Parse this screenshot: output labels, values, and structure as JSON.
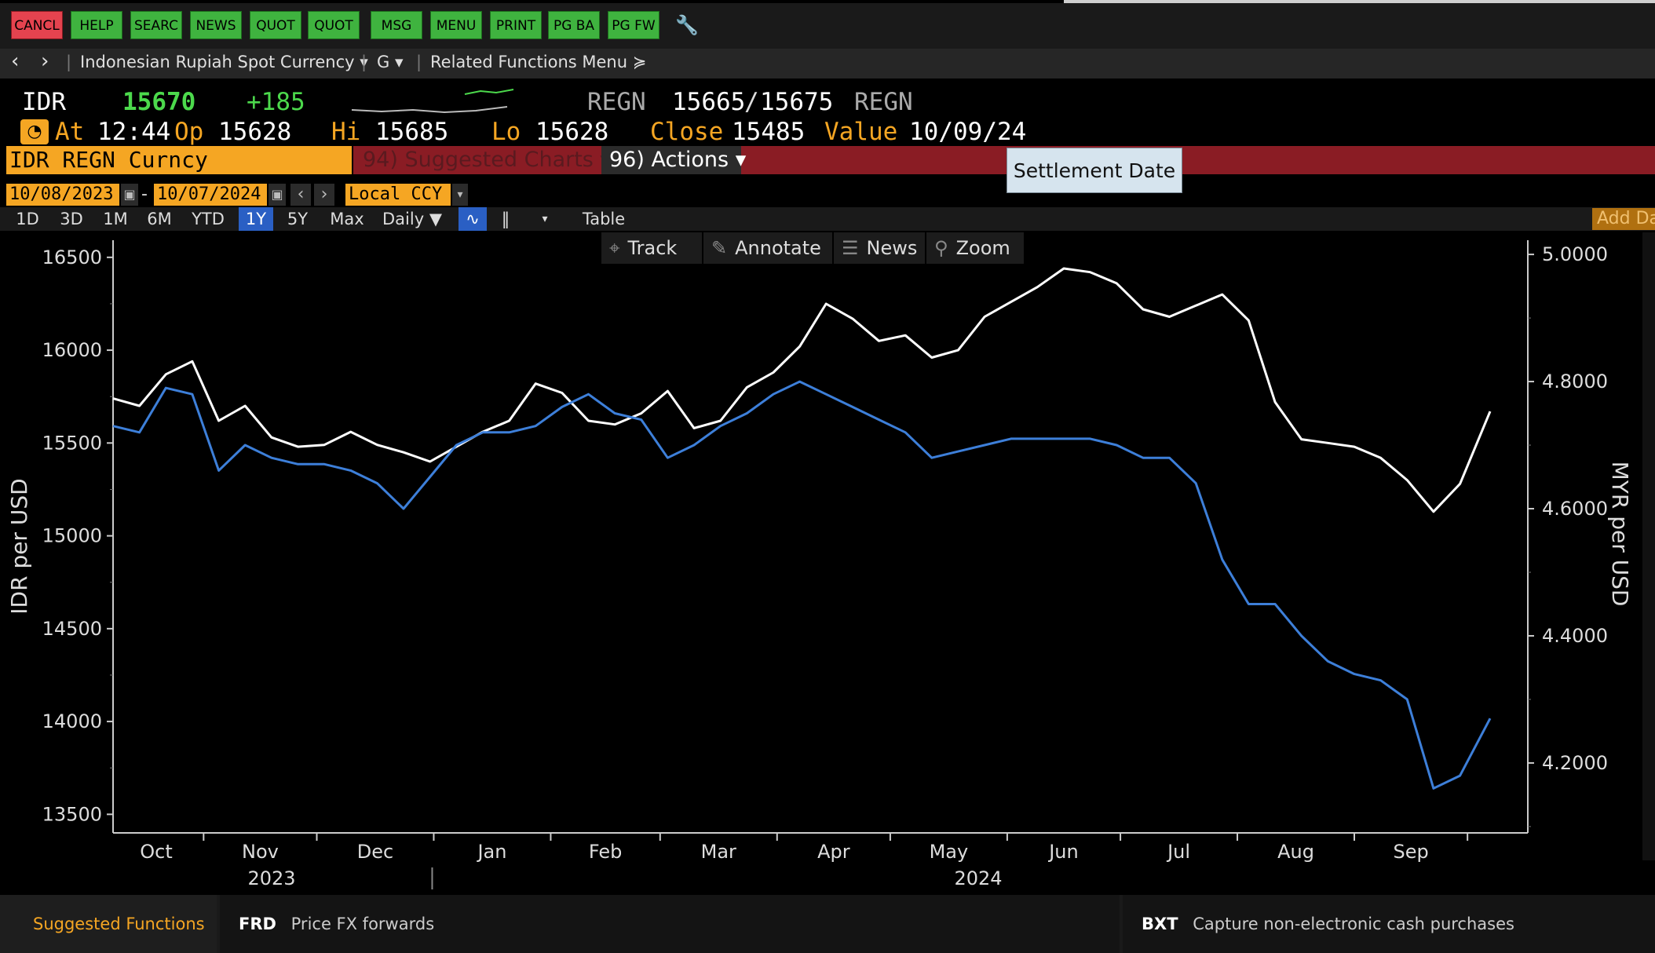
{
  "function_bar": {
    "buttons": [
      "CANCL",
      "HELP",
      "SEARC",
      "NEWS",
      "QUOT",
      "QUOT",
      "MSG",
      "MENU",
      "PRINT",
      "PG BA",
      "PG FW"
    ],
    "wrench_icon": "wrench-icon"
  },
  "breadcrumb": {
    "back": "‹",
    "forward": "›",
    "security": "Indonesian Rupiah Spot Currency ▾",
    "g_menu": "G ▾",
    "related": "Related Functions Menu ≽"
  },
  "quote": {
    "ticker": "IDR",
    "last": "15670",
    "change": "+185",
    "src1": "REGN",
    "bid": "15665",
    "slash": "/",
    "ask": "15675",
    "src2": "REGN",
    "at_label": "At",
    "time": "12:44",
    "open_label": "Op",
    "open": "15628",
    "hi_label": "Hi",
    "hi": "15685",
    "lo_label": "Lo",
    "lo": "15628",
    "close_label": "Close",
    "close": "15485",
    "value_label": "Value",
    "value": "10/09/24"
  },
  "ticker_bar": {
    "label": "IDR REGN Curncy"
  },
  "action_bar": {
    "suggested_charts": "94) Suggested Charts ▾",
    "actions_num": "96)",
    "actions_label": "Actions ▾"
  },
  "tooltip": {
    "text": "Settlement Date"
  },
  "date_range": {
    "start": "10/08/2023",
    "dash": "-",
    "end": "10/07/2024",
    "prev": "‹",
    "next": "›",
    "currency": "Local CCY"
  },
  "range_buttons": [
    "1D",
    "3D",
    "1M",
    "6M",
    "YTD",
    "1Y",
    "5Y",
    "Max"
  ],
  "active_range": "1Y",
  "periodicity": "Daily ▼",
  "table_label": "Table",
  "add_data": "Add Da",
  "chart_toolbar": {
    "track": "Track",
    "annotate": "Annotate",
    "news": "News",
    "zoom": "Zoom"
  },
  "chart_data": {
    "type": "line",
    "left_axis": {
      "label": "IDR per USD",
      "ticks": [
        16500,
        16000,
        15500,
        15000,
        14500,
        14000,
        13500
      ],
      "range": [
        13400,
        16550
      ]
    },
    "right_axis": {
      "label": "MYR per USD",
      "ticks": [
        "5.0000",
        "4.8000",
        "4.6000",
        "4.4000",
        "4.2000"
      ],
      "range": [
        4.09,
        5.01
      ]
    },
    "x_months": [
      "Oct",
      "Nov",
      "Dec",
      "Jan",
      "Feb",
      "Mar",
      "Apr",
      "May",
      "Jun",
      "Jul",
      "Aug",
      "Sep"
    ],
    "x_years": [
      "2023",
      "2024"
    ],
    "colors": {
      "idr": "#ffffff",
      "myr": "#3d7fd9",
      "axis": "#cccccc"
    },
    "series": [
      {
        "axis": "left",
        "color": "#ffffff",
        "x": [
          "2023-10-08",
          "2023-10-15",
          "2023-10-22",
          "2023-10-29",
          "2023-11-05",
          "2023-11-12",
          "2023-11-19",
          "2023-11-26",
          "2023-12-03",
          "2023-12-10",
          "2023-12-17",
          "2023-12-24",
          "2023-12-31",
          "2024-01-07",
          "2024-01-14",
          "2024-01-21",
          "2024-01-28",
          "2024-02-04",
          "2024-02-11",
          "2024-02-18",
          "2024-02-25",
          "2024-03-03",
          "2024-03-10",
          "2024-03-17",
          "2024-03-24",
          "2024-03-31",
          "2024-04-07",
          "2024-04-14",
          "2024-04-21",
          "2024-04-28",
          "2024-05-05",
          "2024-05-12",
          "2024-05-19",
          "2024-05-26",
          "2024-06-02",
          "2024-06-09",
          "2024-06-16",
          "2024-06-23",
          "2024-06-30",
          "2024-07-07",
          "2024-07-14",
          "2024-07-21",
          "2024-07-28",
          "2024-08-04",
          "2024-08-11",
          "2024-08-18",
          "2024-08-25",
          "2024-09-01",
          "2024-09-08",
          "2024-09-15",
          "2024-09-22",
          "2024-09-29",
          "2024-10-07"
        ],
        "y": [
          15740,
          15700,
          15870,
          15940,
          15620,
          15700,
          15530,
          15480,
          15490,
          15560,
          15490,
          15450,
          15400,
          15480,
          15560,
          15620,
          15820,
          15770,
          15620,
          15600,
          15660,
          15780,
          15580,
          15620,
          15800,
          15880,
          16020,
          16250,
          16170,
          16050,
          16080,
          15960,
          16000,
          16180,
          16260,
          16340,
          16440,
          16420,
          16360,
          16220,
          16180,
          16240,
          16300,
          16160,
          15720,
          15520,
          15500,
          15480,
          15420,
          15300,
          15130,
          15280,
          15670
        ]
      },
      {
        "axis": "right",
        "color": "#3d7fd9",
        "x": [
          "2023-10-08",
          "2023-10-15",
          "2023-10-22",
          "2023-10-29",
          "2023-11-05",
          "2023-11-12",
          "2023-11-19",
          "2023-11-26",
          "2023-12-03",
          "2023-12-10",
          "2023-12-17",
          "2023-12-24",
          "2023-12-31",
          "2024-01-07",
          "2024-01-14",
          "2024-01-21",
          "2024-01-28",
          "2024-02-04",
          "2024-02-11",
          "2024-02-18",
          "2024-02-25",
          "2024-03-03",
          "2024-03-10",
          "2024-03-17",
          "2024-03-24",
          "2024-03-31",
          "2024-04-07",
          "2024-04-14",
          "2024-04-21",
          "2024-04-28",
          "2024-05-05",
          "2024-05-12",
          "2024-05-19",
          "2024-05-26",
          "2024-06-02",
          "2024-06-09",
          "2024-06-16",
          "2024-06-23",
          "2024-06-30",
          "2024-07-07",
          "2024-07-14",
          "2024-07-21",
          "2024-07-28",
          "2024-08-04",
          "2024-08-11",
          "2024-08-18",
          "2024-08-25",
          "2024-09-01",
          "2024-09-08",
          "2024-09-15",
          "2024-09-22",
          "2024-09-29",
          "2024-10-07"
        ],
        "y": [
          4.73,
          4.72,
          4.79,
          4.78,
          4.66,
          4.7,
          4.68,
          4.67,
          4.67,
          4.66,
          4.64,
          4.6,
          4.65,
          4.7,
          4.72,
          4.72,
          4.73,
          4.76,
          4.78,
          4.75,
          4.74,
          4.68,
          4.7,
          4.73,
          4.75,
          4.78,
          4.8,
          4.78,
          4.76,
          4.74,
          4.72,
          4.68,
          4.69,
          4.7,
          4.71,
          4.71,
          4.71,
          4.71,
          4.7,
          4.68,
          4.68,
          4.64,
          4.52,
          4.45,
          4.45,
          4.4,
          4.36,
          4.34,
          4.33,
          4.3,
          4.16,
          4.18,
          4.27
        ]
      }
    ]
  },
  "bottom": {
    "suggested_functions": "Suggested Functions",
    "frd_code": "FRD",
    "frd_desc": "Price FX forwards",
    "bxt_code": "BXT",
    "bxt_desc": "Capture non-electronic cash purchases"
  }
}
